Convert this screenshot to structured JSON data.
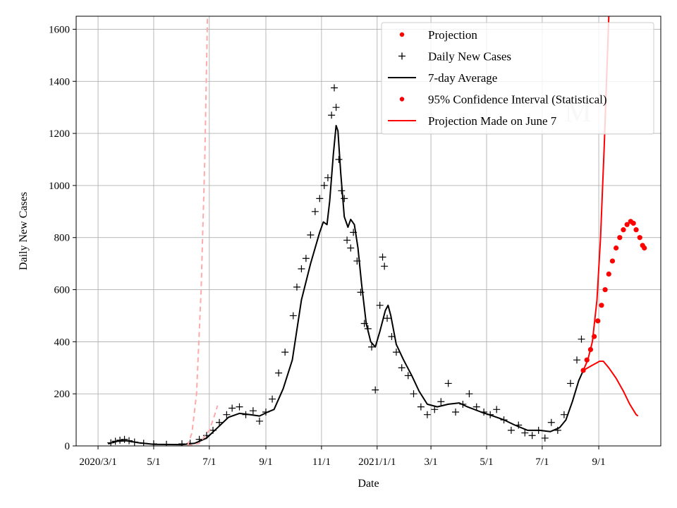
{
  "chart_data": {
    "type": "line",
    "title": "",
    "xlabel": "Date",
    "ylabel": "Daily New Cases",
    "x_range": [
      "2020-02-06",
      "2021-11-08"
    ],
    "ylim": [
      0,
      1650
    ],
    "grid": true,
    "legend_position": "top-right",
    "watermark": "M",
    "x_ticks": [
      {
        "date": "2020-03-01",
        "label": "2020/3/1"
      },
      {
        "date": "2020-05-01",
        "label": "5/1"
      },
      {
        "date": "2020-07-01",
        "label": "7/1"
      },
      {
        "date": "2020-09-01",
        "label": "9/1"
      },
      {
        "date": "2020-11-01",
        "label": "11/1"
      },
      {
        "date": "2021-01-01",
        "label": "2021/1/1"
      },
      {
        "date": "2021-03-01",
        "label": "3/1"
      },
      {
        "date": "2021-05-01",
        "label": "5/1"
      },
      {
        "date": "2021-07-01",
        "label": "7/1"
      },
      {
        "date": "2021-09-01",
        "label": "9/1"
      }
    ],
    "y_ticks": [
      {
        "value": 0,
        "label": "0"
      },
      {
        "value": 200,
        "label": "200"
      },
      {
        "value": 400,
        "label": "400"
      },
      {
        "value": 600,
        "label": "600"
      },
      {
        "value": 800,
        "label": "800"
      },
      {
        "value": 1000,
        "label": "1000"
      },
      {
        "value": 1200,
        "label": "1200"
      },
      {
        "value": 1400,
        "label": "1400"
      },
      {
        "value": 1600,
        "label": "1600"
      }
    ],
    "legend": [
      {
        "label": "Projection",
        "marker": "dot",
        "color": "#ff0000"
      },
      {
        "label": "Daily New Cases",
        "marker": "plus",
        "color": "#000000"
      },
      {
        "label": "7-day Average",
        "marker": "line",
        "color": "#000000"
      },
      {
        "label": "95% Confidence Interval (Statistical)",
        "marker": "dot",
        "color": "#ff0000"
      },
      {
        "label": "Projection Made on June 7",
        "marker": "line",
        "color": "#ff0000"
      }
    ],
    "series": [
      {
        "name": "Daily New Cases",
        "style": "markers-plus",
        "color": "#000000",
        "points": [
          [
            "2020-03-15",
            12
          ],
          [
            "2020-03-20",
            18
          ],
          [
            "2020-03-25",
            22
          ],
          [
            "2020-03-30",
            25
          ],
          [
            "2020-04-04",
            20
          ],
          [
            "2020-04-10",
            15
          ],
          [
            "2020-04-20",
            10
          ],
          [
            "2020-05-01",
            8
          ],
          [
            "2020-05-15",
            6
          ],
          [
            "2020-06-01",
            8
          ],
          [
            "2020-06-10",
            10
          ],
          [
            "2020-06-20",
            25
          ],
          [
            "2020-06-28",
            40
          ],
          [
            "2020-07-05",
            60
          ],
          [
            "2020-07-12",
            90
          ],
          [
            "2020-07-20",
            120
          ],
          [
            "2020-07-26",
            145
          ],
          [
            "2020-08-03",
            150
          ],
          [
            "2020-08-10",
            120
          ],
          [
            "2020-08-18",
            135
          ],
          [
            "2020-08-25",
            95
          ],
          [
            "2020-09-01",
            130
          ],
          [
            "2020-09-08",
            180
          ],
          [
            "2020-09-15",
            280
          ],
          [
            "2020-09-22",
            360
          ],
          [
            "2020-10-01",
            500
          ],
          [
            "2020-10-05",
            610
          ],
          [
            "2020-10-10",
            680
          ],
          [
            "2020-10-15",
            720
          ],
          [
            "2020-10-20",
            810
          ],
          [
            "2020-10-25",
            900
          ],
          [
            "2020-10-30",
            950
          ],
          [
            "2020-11-04",
            1000
          ],
          [
            "2020-11-08",
            1030
          ],
          [
            "2020-11-12",
            1270
          ],
          [
            "2020-11-15",
            1375
          ],
          [
            "2020-11-17",
            1300
          ],
          [
            "2020-11-20",
            1100
          ],
          [
            "2020-11-23",
            980
          ],
          [
            "2020-11-26",
            950
          ],
          [
            "2020-11-29",
            790
          ],
          [
            "2020-12-03",
            760
          ],
          [
            "2020-12-06",
            820
          ],
          [
            "2020-12-10",
            710
          ],
          [
            "2020-12-14",
            590
          ],
          [
            "2020-12-18",
            470
          ],
          [
            "2020-12-22",
            450
          ],
          [
            "2020-12-26",
            380
          ],
          [
            "2020-12-30",
            215
          ],
          [
            "2021-01-04",
            540
          ],
          [
            "2021-01-07",
            725
          ],
          [
            "2021-01-09",
            690
          ],
          [
            "2021-01-12",
            490
          ],
          [
            "2021-01-17",
            420
          ],
          [
            "2021-01-22",
            360
          ],
          [
            "2021-01-28",
            300
          ],
          [
            "2021-02-04",
            270
          ],
          [
            "2021-02-10",
            200
          ],
          [
            "2021-02-18",
            150
          ],
          [
            "2021-02-25",
            120
          ],
          [
            "2021-03-05",
            140
          ],
          [
            "2021-03-12",
            170
          ],
          [
            "2021-03-20",
            240
          ],
          [
            "2021-03-28",
            130
          ],
          [
            "2021-04-05",
            160
          ],
          [
            "2021-04-12",
            200
          ],
          [
            "2021-04-20",
            150
          ],
          [
            "2021-04-28",
            130
          ],
          [
            "2021-05-05",
            120
          ],
          [
            "2021-05-12",
            140
          ],
          [
            "2021-05-20",
            100
          ],
          [
            "2021-05-28",
            60
          ],
          [
            "2021-06-05",
            80
          ],
          [
            "2021-06-12",
            50
          ],
          [
            "2021-06-20",
            40
          ],
          [
            "2021-06-27",
            60
          ],
          [
            "2021-07-04",
            30
          ],
          [
            "2021-07-11",
            90
          ],
          [
            "2021-07-18",
            60
          ],
          [
            "2021-07-25",
            120
          ],
          [
            "2021-08-01",
            240
          ],
          [
            "2021-08-08",
            330
          ],
          [
            "2021-08-13",
            410
          ]
        ]
      },
      {
        "name": "7-day Average",
        "style": "line",
        "color": "#000000",
        "points": [
          [
            "2020-03-12",
            8
          ],
          [
            "2020-03-22",
            18
          ],
          [
            "2020-04-01",
            20
          ],
          [
            "2020-04-15",
            12
          ],
          [
            "2020-05-01",
            6
          ],
          [
            "2020-06-01",
            5
          ],
          [
            "2020-06-15",
            10
          ],
          [
            "2020-06-28",
            30
          ],
          [
            "2020-07-10",
            70
          ],
          [
            "2020-07-22",
            110
          ],
          [
            "2020-08-03",
            125
          ],
          [
            "2020-08-15",
            120
          ],
          [
            "2020-08-25",
            115
          ],
          [
            "2020-09-03",
            130
          ],
          [
            "2020-09-10",
            140
          ],
          [
            "2020-09-20",
            220
          ],
          [
            "2020-09-30",
            330
          ],
          [
            "2020-10-10",
            560
          ],
          [
            "2020-10-20",
            700
          ],
          [
            "2020-10-30",
            820
          ],
          [
            "2020-11-03",
            860
          ],
          [
            "2020-11-07",
            850
          ],
          [
            "2020-11-10",
            940
          ],
          [
            "2020-11-14",
            1120
          ],
          [
            "2020-11-17",
            1230
          ],
          [
            "2020-11-19",
            1210
          ],
          [
            "2020-11-22",
            1050
          ],
          [
            "2020-11-26",
            880
          ],
          [
            "2020-11-30",
            840
          ],
          [
            "2020-12-03",
            870
          ],
          [
            "2020-12-07",
            850
          ],
          [
            "2020-12-11",
            760
          ],
          [
            "2020-12-15",
            620
          ],
          [
            "2020-12-20",
            470
          ],
          [
            "2020-12-25",
            400
          ],
          [
            "2020-12-30",
            380
          ],
          [
            "2021-01-04",
            440
          ],
          [
            "2021-01-10",
            520
          ],
          [
            "2021-01-13",
            540
          ],
          [
            "2021-01-16",
            500
          ],
          [
            "2021-01-22",
            390
          ],
          [
            "2021-01-30",
            330
          ],
          [
            "2021-02-08",
            270
          ],
          [
            "2021-02-16",
            210
          ],
          [
            "2021-02-25",
            160
          ],
          [
            "2021-03-08",
            150
          ],
          [
            "2021-03-20",
            160
          ],
          [
            "2021-04-01",
            165
          ],
          [
            "2021-04-10",
            150
          ],
          [
            "2021-04-25",
            130
          ],
          [
            "2021-05-08",
            115
          ],
          [
            "2021-05-20",
            100
          ],
          [
            "2021-06-01",
            80
          ],
          [
            "2021-06-15",
            60
          ],
          [
            "2021-06-28",
            60
          ],
          [
            "2021-07-10",
            55
          ],
          [
            "2021-07-20",
            70
          ],
          [
            "2021-07-27",
            100
          ],
          [
            "2021-08-03",
            170
          ],
          [
            "2021-08-10",
            250
          ],
          [
            "2021-08-15",
            290
          ]
        ]
      },
      {
        "name": "Projection",
        "style": "markers-dot",
        "color": "#ff0000",
        "points": [
          [
            "2021-08-15",
            290
          ],
          [
            "2021-08-19",
            330
          ],
          [
            "2021-08-23",
            370
          ],
          [
            "2021-08-27",
            420
          ],
          [
            "2021-08-31",
            480
          ],
          [
            "2021-09-04",
            540
          ],
          [
            "2021-09-08",
            600
          ],
          [
            "2021-09-12",
            660
          ],
          [
            "2021-09-16",
            710
          ],
          [
            "2021-09-20",
            760
          ],
          [
            "2021-09-24",
            800
          ],
          [
            "2021-09-28",
            830
          ],
          [
            "2021-10-02",
            850
          ],
          [
            "2021-10-06",
            862
          ],
          [
            "2021-10-09",
            855
          ],
          [
            "2021-10-12",
            830
          ],
          [
            "2021-10-16",
            800
          ],
          [
            "2021-10-19",
            770
          ],
          [
            "2021-10-21",
            760
          ]
        ]
      },
      {
        "name": "95% Confidence Interval (Statistical)",
        "style": "line",
        "color": "#ff0000",
        "points": [
          [
            "2021-08-15",
            290
          ],
          [
            "2021-08-20",
            330
          ],
          [
            "2021-08-25",
            400
          ],
          [
            "2021-08-30",
            560
          ],
          [
            "2021-09-03",
            800
          ],
          [
            "2021-09-07",
            1150
          ],
          [
            "2021-09-10",
            1450
          ],
          [
            "2021-09-12",
            1650
          ]
        ]
      },
      {
        "name": "95% Confidence Interval (Statistical)",
        "style": "line",
        "color": "#ff0000",
        "points": [
          [
            "2021-08-15",
            290
          ],
          [
            "2021-08-25",
            310
          ],
          [
            "2021-09-02",
            325
          ],
          [
            "2021-09-06",
            325
          ],
          [
            "2021-09-12",
            300
          ],
          [
            "2021-09-20",
            260
          ],
          [
            "2021-09-28",
            210
          ],
          [
            "2021-10-05",
            160
          ],
          [
            "2021-10-12",
            120
          ],
          [
            "2021-10-14",
            115
          ]
        ]
      },
      {
        "name": "Projection Made on June 7",
        "style": "dashed",
        "color": "#ffaaaa",
        "points": [
          [
            "2020-06-07",
            0
          ],
          [
            "2020-06-12",
            50
          ],
          [
            "2020-06-17",
            200
          ],
          [
            "2020-06-22",
            600
          ],
          [
            "2020-06-26",
            1100
          ],
          [
            "2020-06-29",
            1650
          ]
        ]
      },
      {
        "name": "Projection Made on June 7",
        "style": "dashed",
        "color": "#ffaaaa",
        "points": [
          [
            "2020-06-07",
            0
          ],
          [
            "2020-06-20",
            10
          ],
          [
            "2020-07-01",
            60
          ],
          [
            "2020-07-06",
            110
          ],
          [
            "2020-07-10",
            155
          ]
        ]
      }
    ]
  }
}
